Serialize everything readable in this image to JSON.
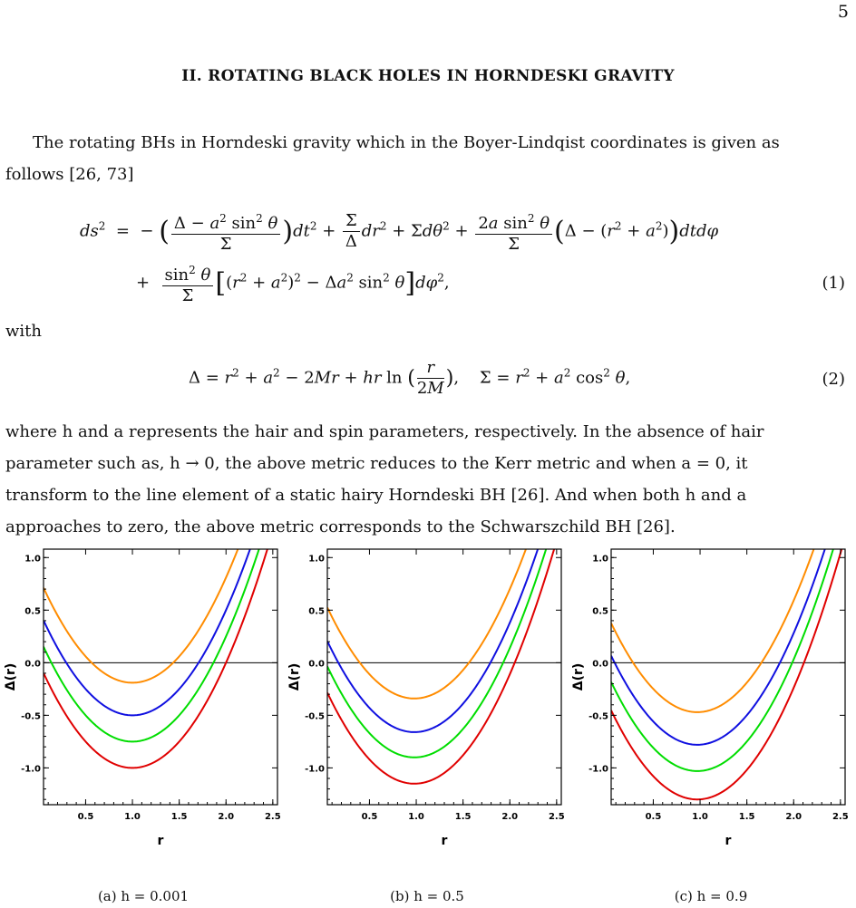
{
  "page_number": "5",
  "section_title": "II.   ROTATING BLACK HOLES IN HORNDESKI GRAVITY",
  "intro": {
    "line1": "The rotating BHs in Horndeski gravity which in the Boyer-Lindqist coordinates is given as",
    "line2": "follows [26, 73]"
  },
  "eq1_number": "(1)",
  "with_text": "with",
  "eq2_number": "(2)",
  "para2": {
    "line1": "where h and a represents the hair and spin parameters, respectively.  In the absence of hair",
    "line2": "parameter such as, h → 0, the above metric reduces to the Kerr metric and when a = 0, it",
    "line3": "transform to the line element of a static hairy Horndeski BH [26].  And when both h and a",
    "line4": "approaches to zero, the above metric corresponds to the Schwarszchild BH [26]."
  },
  "chart_data": [
    {
      "type": "line",
      "caption": "(a) h = 0.001",
      "xlabel": "r",
      "ylabel": "Δ(r)",
      "xlim": [
        0.05,
        2.55
      ],
      "ylim": [
        -1.35,
        1.08
      ],
      "x_ticks": [
        "0.5",
        "1.0",
        "1.5",
        "2.0",
        "2.5"
      ],
      "y_ticks": [
        "1.0",
        "0.5",
        "0.0",
        "-0.5",
        "-1.0"
      ],
      "series": [
        {
          "color": "#ff8c00",
          "min_x": 1.0,
          "min_y": -0.19
        },
        {
          "color": "#1010e0",
          "min_x": 1.0,
          "min_y": -0.5
        },
        {
          "color": "#00dd00",
          "min_x": 1.0,
          "min_y": -0.75
        },
        {
          "color": "#e00000",
          "min_x": 1.0,
          "min_y": -1.0
        }
      ]
    },
    {
      "type": "line",
      "caption": "(b) h = 0.5",
      "xlabel": "r",
      "ylabel": "Δ(r)",
      "xlim": [
        0.05,
        2.55
      ],
      "ylim": [
        -1.35,
        1.08
      ],
      "x_ticks": [
        "0.5",
        "1.0",
        "1.5",
        "2.0",
        "2.5"
      ],
      "y_ticks": [
        "1.0",
        "0.5",
        "0.0",
        "-0.5",
        "-1.0"
      ],
      "series": [
        {
          "color": "#ff8c00",
          "min_x": 0.98,
          "min_y": -0.34
        },
        {
          "color": "#1010e0",
          "min_x": 0.98,
          "min_y": -0.66
        },
        {
          "color": "#00dd00",
          "min_x": 0.98,
          "min_y": -0.9
        },
        {
          "color": "#e00000",
          "min_x": 0.98,
          "min_y": -1.15
        }
      ]
    },
    {
      "type": "line",
      "caption": "(c) h = 0.9",
      "xlabel": "r",
      "ylabel": "Δ(r)",
      "xlim": [
        0.05,
        2.55
      ],
      "ylim": [
        -1.35,
        1.08
      ],
      "x_ticks": [
        "0.5",
        "1.0",
        "1.5",
        "2.0",
        "2.5"
      ],
      "y_ticks": [
        "1.0",
        "0.5",
        "0.0",
        "-0.5",
        "-1.0"
      ],
      "series": [
        {
          "color": "#ff8c00",
          "min_x": 0.97,
          "min_y": -0.47
        },
        {
          "color": "#1010e0",
          "min_x": 0.97,
          "min_y": -0.78
        },
        {
          "color": "#00dd00",
          "min_x": 0.97,
          "min_y": -1.03
        },
        {
          "color": "#e00000",
          "min_x": 0.97,
          "min_y": -1.3
        }
      ]
    }
  ]
}
